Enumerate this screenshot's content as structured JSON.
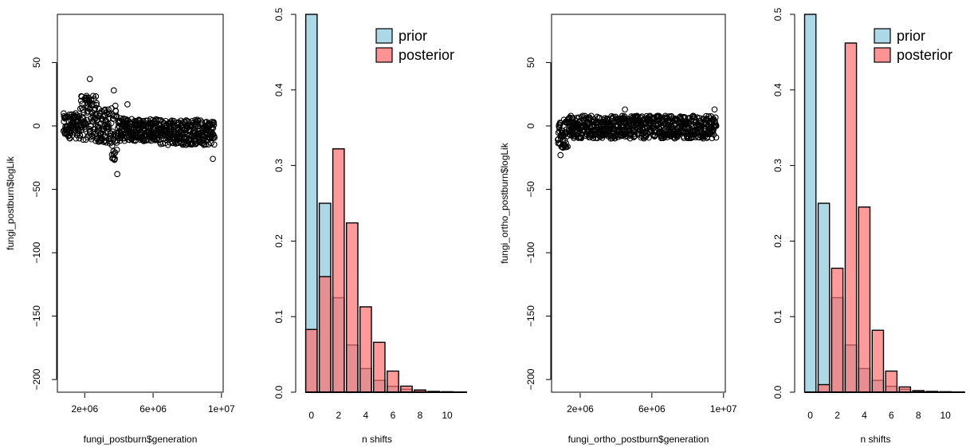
{
  "colors": {
    "prior": "#ADD8E6",
    "posterior": "#FF6F6F",
    "ink": "#000000"
  },
  "chart_data": [
    {
      "type": "scatter",
      "xlabel": "fungi_postburn$generation",
      "ylabel": "fungi_postburn$logLik",
      "xlim": [
        400000,
        10100000
      ],
      "ylim": [
        -210,
        88
      ],
      "x_ticks": [
        2000000,
        6000000,
        10000000
      ],
      "x_tick_labels": [
        "2e+06",
        "6e+06",
        "1e+07"
      ],
      "y_ticks": [
        -200,
        -150,
        -100,
        -50,
        0,
        50
      ],
      "y_tick_labels": [
        "-200",
        "-150",
        "-100",
        "-50",
        "0",
        "50"
      ],
      "segments": [
        {
          "x0": 750000,
          "x1": 1700000,
          "center": 0,
          "half_width": 10
        },
        {
          "x0": 1700000,
          "x1": 2700000,
          "center": 6,
          "half_width": 18
        },
        {
          "x0": 2700000,
          "x1": 3500000,
          "center": 0,
          "half_width": 14
        },
        {
          "x0": 3500000,
          "x1": 3900000,
          "center": -5,
          "half_width": 22
        },
        {
          "x0": 3900000,
          "x1": 6300000,
          "center": -3,
          "half_width": 9
        },
        {
          "x0": 6300000,
          "x1": 9600000,
          "center": -5,
          "half_width": 10
        }
      ],
      "outliers": [
        [
          2300000,
          37
        ],
        [
          3700000,
          28
        ],
        [
          3900000,
          -38
        ],
        [
          4500000,
          17
        ],
        [
          9500000,
          -26
        ]
      ]
    },
    {
      "type": "bar",
      "xlabel": "n shifts",
      "ylabel": "",
      "xlim": [
        -1.1,
        11.7
      ],
      "ylim": [
        0,
        0.5
      ],
      "x_ticks": [
        0,
        2,
        4,
        6,
        8,
        10
      ],
      "y_ticks": [
        0.0,
        0.1,
        0.2,
        0.3,
        0.4,
        0.5
      ],
      "y_tick_labels": [
        "0.0",
        "0.1",
        "0.2",
        "0.3",
        "0.4",
        "0.5"
      ],
      "categories": [
        0,
        1,
        2,
        3,
        4,
        5,
        6,
        7,
        8,
        9,
        10,
        11
      ],
      "legend": {
        "position": "top-right",
        "entries": [
          "prior",
          "posterior"
        ]
      },
      "series": [
        {
          "name": "prior",
          "values": [
            0.5,
            0.25,
            0.125,
            0.0625,
            0.03125,
            0.015625,
            0.0078,
            0.0039,
            0.002,
            0.001,
            0.0005,
            0.0002
          ]
        },
        {
          "name": "posterior",
          "values": [
            0.083,
            0.153,
            0.322,
            0.224,
            0.113,
            0.066,
            0.028,
            0.008,
            0.003,
            0.001,
            0.0005,
            0.0002
          ]
        }
      ]
    },
    {
      "type": "scatter",
      "xlabel": "fungi_ortho_postburn$generation",
      "ylabel": "fungi_ortho_postburn$logLik",
      "xlim": [
        400000,
        10100000
      ],
      "ylim": [
        -210,
        88
      ],
      "x_ticks": [
        2000000,
        6000000,
        10000000
      ],
      "x_tick_labels": [
        "2e+06",
        "6e+06",
        "1e+07"
      ],
      "y_ticks": [
        -200,
        -150,
        -100,
        -50,
        0,
        50
      ],
      "y_tick_labels": [
        "-200",
        "-150",
        "-100",
        "-50",
        "0",
        "50"
      ],
      "segments": [
        {
          "x0": 750000,
          "x1": 1300000,
          "center": -6,
          "half_width": 12
        },
        {
          "x0": 1300000,
          "x1": 9600000,
          "center": -1,
          "half_width": 9
        }
      ],
      "outliers": [
        [
          900000,
          -23
        ],
        [
          4500000,
          13
        ],
        [
          9500000,
          13
        ]
      ]
    },
    {
      "type": "bar",
      "xlabel": "n shifts",
      "ylabel": "",
      "xlim": [
        -1.1,
        11.7
      ],
      "ylim": [
        0,
        0.5
      ],
      "x_ticks": [
        0,
        2,
        4,
        6,
        8,
        10
      ],
      "y_ticks": [
        0.0,
        0.1,
        0.2,
        0.3,
        0.4,
        0.5
      ],
      "y_tick_labels": [
        "0.0",
        "0.1",
        "0.2",
        "0.3",
        "0.4",
        "0.5"
      ],
      "categories": [
        0,
        1,
        2,
        3,
        4,
        5,
        6,
        7,
        8,
        9,
        10,
        11
      ],
      "legend": {
        "position": "top-right",
        "entries": [
          "prior",
          "posterior"
        ]
      },
      "series": [
        {
          "name": "prior",
          "values": [
            0.5,
            0.25,
            0.125,
            0.0625,
            0.03125,
            0.015625,
            0.0078,
            0.0039,
            0.002,
            0.001,
            0.0005,
            0.0002
          ]
        },
        {
          "name": "posterior",
          "values": [
            0.0,
            0.01,
            0.164,
            0.462,
            0.245,
            0.082,
            0.028,
            0.007,
            0.002,
            0.001,
            0.0005,
            0.0002
          ]
        }
      ]
    }
  ]
}
